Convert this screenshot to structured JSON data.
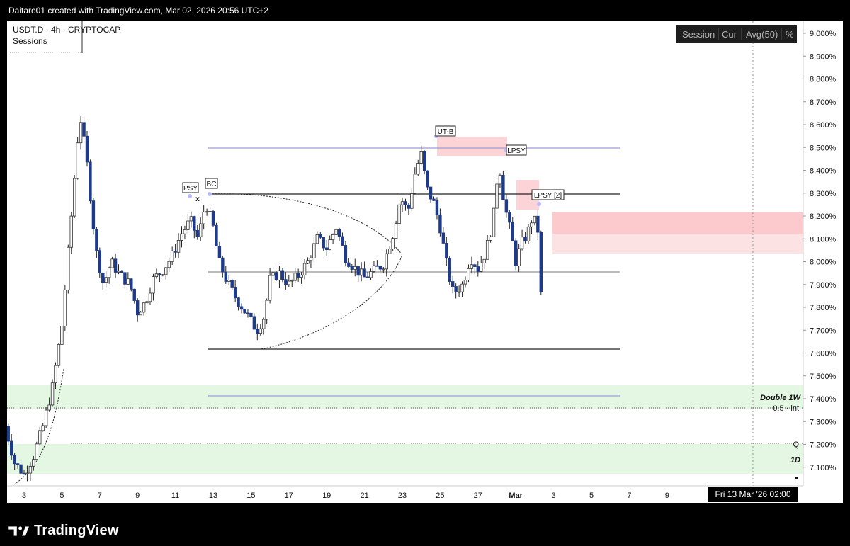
{
  "header": {
    "caption": "Daitaro01 created with TradingView.com, Mar 02, 2026 20:56 UTC+2"
  },
  "legend": {
    "symbol_line": "USDT.D · 4h · CRYPTOCAP",
    "indicator_line": "Sessions"
  },
  "indicator_panel": {
    "items": [
      "Session",
      "Cur",
      "Avg(50)",
      "%"
    ]
  },
  "brand": {
    "name": "TradingView"
  },
  "crosshair_time": "Fri 13 Mar '26   02:00",
  "colors": {
    "up_body": "#ffffff",
    "down_body": "#1e3a8a",
    "wick": "#222222",
    "range_line": "#9b9bd9",
    "supply_zone": "#fcd3d6",
    "demand_zone": "#e3f7e3"
  },
  "chart_data": {
    "type": "candlestick",
    "title": "USDT.D · 4h · CRYPTOCAP",
    "x_ticks": [
      "3",
      "5",
      "7",
      "9",
      "11",
      "13",
      "15",
      "17",
      "19",
      "21",
      "23",
      "25",
      "27",
      "Mar",
      "3",
      "5",
      "7",
      "9"
    ],
    "y_ticks": [
      "9.000%",
      "8.900%",
      "8.800%",
      "8.700%",
      "8.600%",
      "8.500%",
      "8.400%",
      "8.300%",
      "8.200%",
      "8.100%",
      "8.000%",
      "7.900%",
      "7.800%",
      "7.700%",
      "7.600%",
      "7.500%",
      "7.400%",
      "7.300%",
      "7.200%",
      "7.100%"
    ],
    "y_range": [
      7.05,
      9.03
    ],
    "price_path_day_pct": [
      [
        2.0,
        7.28
      ],
      [
        2.5,
        7.12
      ],
      [
        3.0,
        7.07
      ],
      [
        3.5,
        7.15
      ],
      [
        4.0,
        7.28
      ],
      [
        4.5,
        7.45
      ],
      [
        5.0,
        7.72
      ],
      [
        5.5,
        8.2
      ],
      [
        5.95,
        8.65
      ],
      [
        6.3,
        8.45
      ],
      [
        6.8,
        8.05
      ],
      [
        7.2,
        7.9
      ],
      [
        7.6,
        8.0
      ],
      [
        8.0,
        7.95
      ],
      [
        8.6,
        7.9
      ],
      [
        9.0,
        7.78
      ],
      [
        9.4,
        7.82
      ],
      [
        9.8,
        7.92
      ],
      [
        10.3,
        7.96
      ],
      [
        10.8,
        8.02
      ],
      [
        11.3,
        8.12
      ],
      [
        11.8,
        8.18
      ],
      [
        12.2,
        8.1
      ],
      [
        12.6,
        8.26
      ],
      [
        13.0,
        8.15
      ],
      [
        13.3,
        8.0
      ],
      [
        13.7,
        7.92
      ],
      [
        14.2,
        7.84
      ],
      [
        14.7,
        7.78
      ],
      [
        15.3,
        7.7
      ],
      [
        15.7,
        7.76
      ],
      [
        16.0,
        7.92
      ],
      [
        16.5,
        7.95
      ],
      [
        17.0,
        7.9
      ],
      [
        17.5,
        7.94
      ],
      [
        18.0,
        8.0
      ],
      [
        18.5,
        8.1
      ],
      [
        19.0,
        8.06
      ],
      [
        19.5,
        8.15
      ],
      [
        20.0,
        8.02
      ],
      [
        20.5,
        7.97
      ],
      [
        21.0,
        7.93
      ],
      [
        21.5,
        7.96
      ],
      [
        22.0,
        7.99
      ],
      [
        22.5,
        8.12
      ],
      [
        22.9,
        8.28
      ],
      [
        23.3,
        8.22
      ],
      [
        23.7,
        8.4
      ],
      [
        24.0,
        8.47
      ],
      [
        24.3,
        8.32
      ],
      [
        24.7,
        8.25
      ],
      [
        25.0,
        8.15
      ],
      [
        25.4,
        7.96
      ],
      [
        25.7,
        7.86
      ],
      [
        26.2,
        7.9
      ],
      [
        26.6,
        8.02
      ],
      [
        27.0,
        7.97
      ],
      [
        27.4,
        8.04
      ],
      [
        27.8,
        8.18
      ],
      [
        28.1,
        8.44
      ],
      [
        28.4,
        8.25
      ],
      [
        28.8,
        8.1
      ],
      [
        29.0,
        8.0
      ],
      [
        29.3,
        8.08
      ],
      [
        29.6,
        8.12
      ],
      [
        29.9,
        8.2
      ],
      [
        30.2,
        8.13
      ],
      [
        30.35,
        7.82
      ],
      [
        30.45,
        7.87
      ]
    ],
    "range_lines": [
      {
        "price": 8.495,
        "color": "range_line"
      },
      {
        "price": 8.3,
        "color": "black"
      },
      {
        "price": 7.96,
        "color": "neutral"
      },
      {
        "price": 7.62,
        "color": "black"
      },
      {
        "price": 7.415,
        "color": "range_line"
      }
    ],
    "annotations": [
      "PSY",
      "BC",
      "x",
      "UT-B",
      "LPSY",
      "LPSY [2]",
      "Double 1W",
      "0.5 · int",
      "Q",
      "1D"
    ]
  }
}
